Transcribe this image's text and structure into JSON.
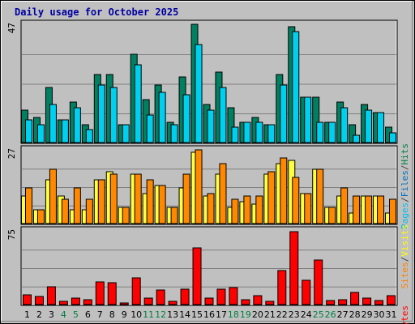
{
  "chart_data": {
    "type": "bar",
    "title": "Daily usage for October 2025",
    "days": [
      "1",
      "2",
      "3",
      "4",
      "5",
      "6",
      "7",
      "8",
      "9",
      "10",
      "11",
      "12",
      "13",
      "14",
      "15",
      "16",
      "17",
      "18",
      "19",
      "20",
      "21",
      "22",
      "23",
      "24",
      "25",
      "26",
      "27",
      "28",
      "29",
      "30",
      "31"
    ],
    "weekend_days": [
      "4",
      "5",
      "11",
      "12",
      "18",
      "19",
      "25",
      "26"
    ],
    "panels": [
      {
        "id": "hits_files_pages",
        "ymax_label": "47",
        "ymax": 47,
        "legend": [
          "Pages",
          "/",
          "Files",
          "/",
          "Hits"
        ],
        "legend_colors": [
          "#00c0f0",
          "#444444",
          "#0070c0",
          "#444444",
          "#008040"
        ],
        "series": [
          {
            "name": "Hits",
            "color": "#008060",
            "values": [
              13,
              10,
              22,
              9,
              16,
              7,
              27,
              27,
              7,
              35,
              17,
              23,
              8,
              26,
              47,
              15,
              28,
              14,
              8,
              10,
              7,
              27,
              46,
              18,
              18,
              8,
              16,
              7,
              15,
              12,
              6
            ]
          },
          {
            "name": "Files",
            "color": "#00d0f0",
            "values": [
              9,
              7,
              15,
              9,
              14,
              5,
              23,
              22,
              7,
              31,
              11,
              20,
              7,
              19,
              39,
              13,
              22,
              6,
              8,
              8,
              7,
              23,
              44,
              18,
              8,
              8,
              14,
              3,
              13,
              12,
              4
            ]
          }
        ]
      },
      {
        "id": "visits_sites",
        "ymax_label": "27",
        "ymax": 27,
        "legend": [
          "Sites",
          "/",
          "Visits"
        ],
        "legend_colors": [
          "#ff8000",
          "#444444",
          "#ffff00"
        ],
        "series": [
          {
            "name": "Visits",
            "color": "#ffff40",
            "values": [
              10,
              5,
              16,
              10,
              5,
              5,
              16,
              19,
              6,
              18,
              11,
              14,
              6,
              13,
              26,
              10,
              18,
              6,
              8,
              7,
              18,
              22,
              23,
              11,
              20,
              6,
              10,
              4,
              10,
              10,
              4
            ]
          },
          {
            "name": "Sites",
            "color": "#ff8800",
            "values": [
              13,
              5,
              20,
              9,
              13,
              9,
              16,
              18,
              6,
              18,
              16,
              14,
              6,
              18,
              27,
              11,
              22,
              9,
              10,
              10,
              19,
              24,
              17,
              11,
              20,
              6,
              13,
              10,
              10,
              10,
              9
            ]
          }
        ]
      },
      {
        "id": "kbytes",
        "ymax_label": "75",
        "ymax": 75,
        "legend": [
          "KBytes"
        ],
        "legend_colors": [
          "#ff0000"
        ],
        "series": [
          {
            "name": "KBytes",
            "color": "#ff0000",
            "values": [
              10,
              8,
              18,
              3,
              7,
              5,
              23,
              22,
              2,
              27,
              7,
              15,
              3,
              16,
              58,
              7,
              16,
              17,
              5,
              9,
              3,
              35,
              74,
              25,
              45,
              4,
              5,
              12,
              7,
              4,
              9
            ]
          }
        ]
      }
    ]
  }
}
